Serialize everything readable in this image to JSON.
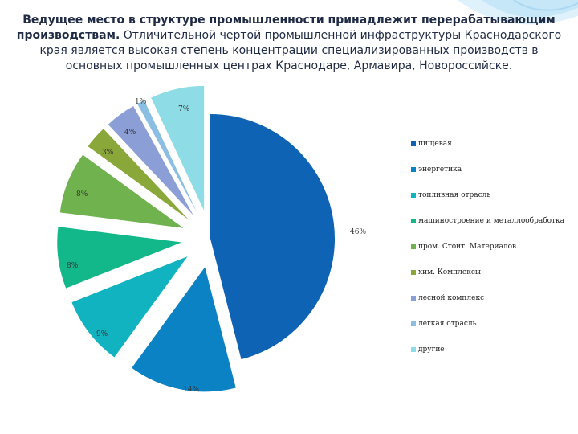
{
  "heading": {
    "bold_part": "Ведущее место в структуре промышленности принадлежит перерабатывающим производствам.",
    "normal_part": " Отличительной чертой промышленной инфраструктуры Краснодарского края является высокая степень концентрации специализированных производств в основных промышленных центрах Краснодаре, Армавира, Новороссийске."
  },
  "chart_data": {
    "type": "pie",
    "title": "",
    "categories": [
      "пищевая",
      "энергетика",
      "топливная отрасль",
      "машиностроение и металлообработка",
      "пром. Стоит. Материалов",
      "хим. Комплексы",
      "лесной комплекс",
      "легкая отрасль",
      "другие"
    ],
    "values": [
      46,
      14,
      9,
      8,
      8,
      3,
      4,
      1,
      7
    ],
    "labels": [
      "46%",
      "14%",
      "9%",
      "8%",
      "8%",
      "3%",
      "4%",
      "1%",
      "7%"
    ],
    "colors": [
      "#0e63b4",
      "#0b82c4",
      "#10b3bf",
      "#13b88a",
      "#6fb24e",
      "#8aa83a",
      "#8b9fd6",
      "#8bbee3",
      "#8edde6"
    ],
    "exploded": true,
    "legend_position": "right"
  }
}
